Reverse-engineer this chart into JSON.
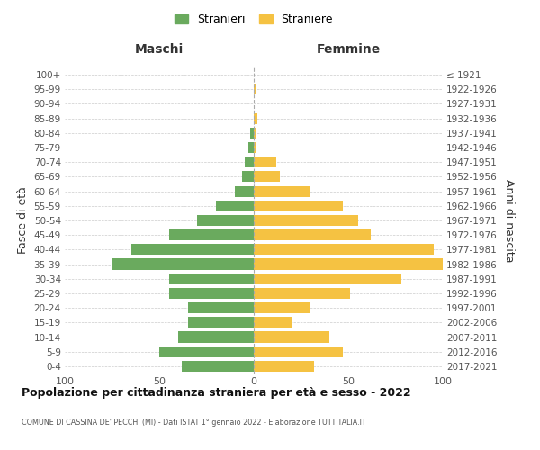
{
  "age_groups": [
    "0-4",
    "5-9",
    "10-14",
    "15-19",
    "20-24",
    "25-29",
    "30-34",
    "35-39",
    "40-44",
    "45-49",
    "50-54",
    "55-59",
    "60-64",
    "65-69",
    "70-74",
    "75-79",
    "80-84",
    "85-89",
    "90-94",
    "95-99",
    "100+"
  ],
  "birth_years": [
    "2017-2021",
    "2012-2016",
    "2007-2011",
    "2002-2006",
    "1997-2001",
    "1992-1996",
    "1987-1991",
    "1982-1986",
    "1977-1981",
    "1972-1976",
    "1967-1971",
    "1962-1966",
    "1957-1961",
    "1952-1956",
    "1947-1951",
    "1942-1946",
    "1937-1941",
    "1932-1936",
    "1927-1931",
    "1922-1926",
    "≤ 1921"
  ],
  "maschi": [
    38,
    50,
    40,
    35,
    35,
    45,
    45,
    75,
    65,
    45,
    30,
    20,
    10,
    6,
    5,
    3,
    2,
    0,
    0,
    0,
    0
  ],
  "femmine": [
    32,
    47,
    40,
    20,
    30,
    51,
    78,
    100,
    95,
    62,
    55,
    47,
    30,
    14,
    12,
    1,
    1,
    2,
    0,
    1,
    0
  ],
  "maschi_color": "#6aaa5e",
  "femmine_color": "#f5c242",
  "title": "Popolazione per cittadinanza straniera per età e sesso - 2022",
  "subtitle": "COMUNE DI CASSINA DE' PECCHI (MI) - Dati ISTAT 1° gennaio 2022 - Elaborazione TUTTITALIA.IT",
  "ylabel_left": "Fasce di età",
  "ylabel_right": "Anni di nascita",
  "xlabel_left": "Maschi",
  "xlabel_right": "Femmine",
  "legend_maschi": "Stranieri",
  "legend_femmine": "Straniere",
  "xlim": 100,
  "background_color": "#ffffff",
  "grid_color": "#cccccc",
  "bar_height": 0.75
}
